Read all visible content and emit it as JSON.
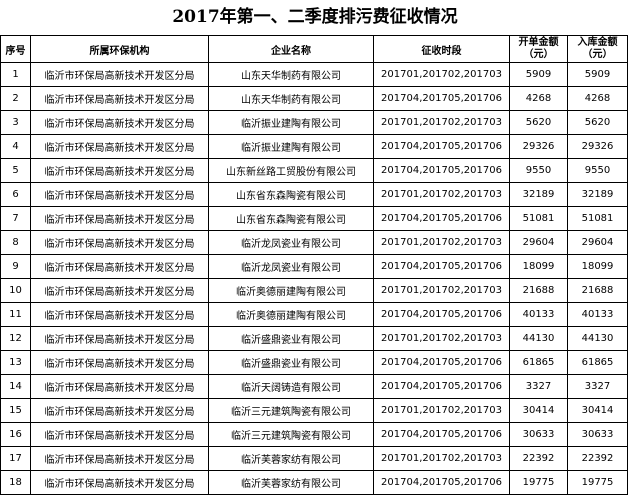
{
  "title": "2017年第一、二季度排污费征收情况",
  "headers": {
    "no": "序号",
    "org": "所属环保机构",
    "company": "企业名称",
    "period": "征收时段",
    "billed_line1": "开单金额",
    "billed_line2": "（元）",
    "paid_line1": "入库金额",
    "paid_line2": "（元）"
  },
  "rows": [
    {
      "no": "1",
      "org": "临沂市环保局高新技术开发区分局",
      "company": "山东天华制药有限公司",
      "period": "201701,201702,201703",
      "billed": "5909",
      "paid": "5909"
    },
    {
      "no": "2",
      "org": "临沂市环保局高新技术开发区分局",
      "company": "山东天华制药有限公司",
      "period": "201704,201705,201706",
      "billed": "4268",
      "paid": "4268"
    },
    {
      "no": "3",
      "org": "临沂市环保局高新技术开发区分局",
      "company": "临沂振业建陶有限公司",
      "period": "201701,201702,201703",
      "billed": "5620",
      "paid": "5620"
    },
    {
      "no": "4",
      "org": "临沂市环保局高新技术开发区分局",
      "company": "临沂振业建陶有限公司",
      "period": "201704,201705,201706",
      "billed": "29326",
      "paid": "29326"
    },
    {
      "no": "5",
      "org": "临沂市环保局高新技术开发区分局",
      "company": "山东新丝路工贸股份有限公司",
      "period": "201704,201705,201706",
      "billed": "9550",
      "paid": "9550"
    },
    {
      "no": "6",
      "org": "临沂市环保局高新技术开发区分局",
      "company": "山东省东森陶瓷有限公司",
      "period": "201701,201702,201703",
      "billed": "32189",
      "paid": "32189"
    },
    {
      "no": "7",
      "org": "临沂市环保局高新技术开发区分局",
      "company": "山东省东森陶瓷有限公司",
      "period": "201704,201705,201706",
      "billed": "51081",
      "paid": "51081"
    },
    {
      "no": "8",
      "org": "临沂市环保局高新技术开发区分局",
      "company": "临沂龙凤瓷业有限公司",
      "period": "201701,201702,201703",
      "billed": "29604",
      "paid": "29604"
    },
    {
      "no": "9",
      "org": "临沂市环保局高新技术开发区分局",
      "company": "临沂龙凤瓷业有限公司",
      "period": "201704,201705,201706",
      "billed": "18099",
      "paid": "18099"
    },
    {
      "no": "10",
      "org": "临沂市环保局高新技术开发区分局",
      "company": "临沂奥德丽建陶有限公司",
      "period": "201701,201702,201703",
      "billed": "21688",
      "paid": "21688"
    },
    {
      "no": "11",
      "org": "临沂市环保局高新技术开发区分局",
      "company": "临沂奥德丽建陶有限公司",
      "period": "201704,201705,201706",
      "billed": "40133",
      "paid": "40133"
    },
    {
      "no": "12",
      "org": "临沂市环保局高新技术开发区分局",
      "company": "临沂盛鼎瓷业有限公司",
      "period": "201701,201702,201703",
      "billed": "44130",
      "paid": "44130"
    },
    {
      "no": "13",
      "org": "临沂市环保局高新技术开发区分局",
      "company": "临沂盛鼎瓷业有限公司",
      "period": "201704,201705,201706",
      "billed": "61865",
      "paid": "61865"
    },
    {
      "no": "14",
      "org": "临沂市环保局高新技术开发区分局",
      "company": "临沂天阔铸造有限公司",
      "period": "201704,201705,201706",
      "billed": "3327",
      "paid": "3327"
    },
    {
      "no": "15",
      "org": "临沂市环保局高新技术开发区分局",
      "company": "临沂三元建筑陶瓷有限公司",
      "period": "201701,201702,201703",
      "billed": "30414",
      "paid": "30414"
    },
    {
      "no": "16",
      "org": "临沂市环保局高新技术开发区分局",
      "company": "临沂三元建筑陶瓷有限公司",
      "period": "201704,201705,201706",
      "billed": "30633",
      "paid": "30633"
    },
    {
      "no": "17",
      "org": "临沂市环保局高新技术开发区分局",
      "company": "临沂芙蓉家纺有限公司",
      "period": "201701,201702,201703",
      "billed": "22392",
      "paid": "22392"
    },
    {
      "no": "18",
      "org": "临沂市环保局高新技术开发区分局",
      "company": "临沂芙蓉家纺有限公司",
      "period": "201704,201705,201706",
      "billed": "19775",
      "paid": "19775"
    }
  ]
}
